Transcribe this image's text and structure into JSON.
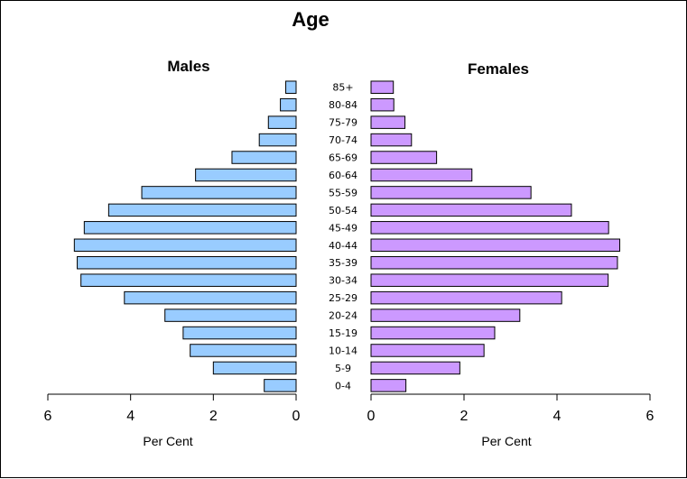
{
  "chart_data": {
    "type": "bar",
    "title": "Age",
    "categories": [
      "85+",
      "80-84",
      "75-79",
      "70-74",
      "65-69",
      "60-64",
      "55-59",
      "50-54",
      "45-49",
      "40-44",
      "35-39",
      "30-34",
      "25-29",
      "20-24",
      "15-19",
      "10-14",
      "5-9",
      "0-4"
    ],
    "series": [
      {
        "name": "Males",
        "values": [
          0.25,
          0.38,
          0.67,
          0.89,
          1.55,
          2.43,
          3.73,
          4.53,
          5.12,
          5.36,
          5.29,
          5.2,
          4.15,
          3.17,
          2.73,
          2.56,
          2.0,
          0.77
        ],
        "color": "#99ccff",
        "xlim": [
          6,
          0
        ]
      },
      {
        "name": "Females",
        "values": [
          0.48,
          0.49,
          0.73,
          0.87,
          1.41,
          2.17,
          3.44,
          4.31,
          5.11,
          5.35,
          5.3,
          5.1,
          4.1,
          3.2,
          2.66,
          2.43,
          1.91,
          0.75
        ],
        "color": "#cc99ff",
        "xlim": [
          0,
          6
        ]
      }
    ],
    "left_ticks": [
      "6",
      "4",
      "2",
      "0"
    ],
    "right_ticks": [
      "0",
      "2",
      "4",
      "6"
    ],
    "left_xlabel": "Per Cent",
    "right_xlabel": "Per Cent",
    "grid": false,
    "legend": "none"
  }
}
